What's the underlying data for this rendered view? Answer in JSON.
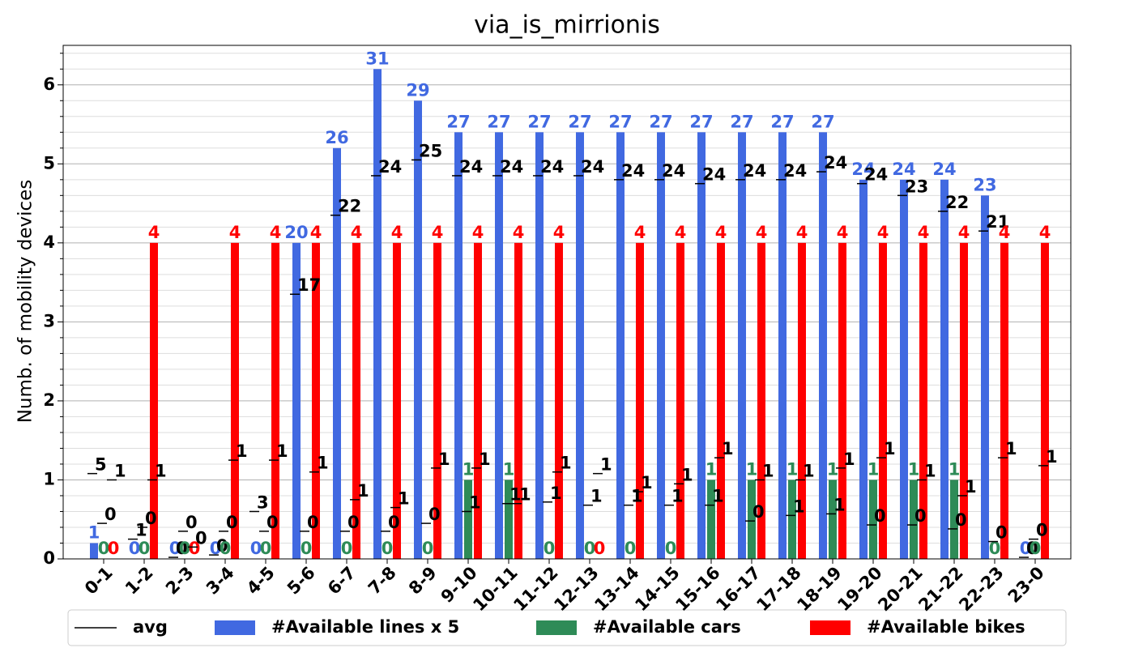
{
  "chart_data": {
    "type": "bar",
    "title": "via_is_mirrionis",
    "ylabel": "Numb. of mobility devices",
    "categories": [
      "0-1",
      "1-2",
      "2-3",
      "3-4",
      "4-5",
      "5-6",
      "6-7",
      "7-8",
      "8-9",
      "9-10",
      "10-11",
      "11-12",
      "12-13",
      "13-14",
      "14-15",
      "15-16",
      "16-17",
      "17-18",
      "18-19",
      "19-20",
      "20-21",
      "21-22",
      "22-23",
      "23-0"
    ],
    "ylim": [
      0,
      6.5
    ],
    "yticks": [
      0,
      1,
      2,
      3,
      4,
      5,
      6
    ],
    "minor_yticks": [
      0.2,
      0.4,
      0.6,
      0.8,
      1.2,
      1.4,
      1.6,
      1.8,
      2.2,
      2.4,
      2.6,
      2.8,
      3.2,
      3.4,
      3.6,
      3.8,
      4.2,
      4.4,
      4.6,
      4.8,
      5.2,
      5.4,
      5.6,
      5.8,
      6.2,
      6.4
    ],
    "grid": true,
    "legend": "bottom",
    "avg_name": "avg",
    "avg_color": "#000000",
    "series": [
      {
        "name": "#Available lines x 5",
        "color": "#4169e1",
        "values": [
          0.2,
          0,
          0,
          0,
          0,
          4,
          5.2,
          6.2,
          5.8,
          5.4,
          5.4,
          5.4,
          5.4,
          5.4,
          5.4,
          5.4,
          5.4,
          5.4,
          5.4,
          4.8,
          4.8,
          4.8,
          4.6,
          0
        ],
        "value_labels": [
          "1",
          "0",
          "0",
          "0",
          "0",
          "20",
          "26",
          "31",
          "29",
          "27",
          "27",
          "27",
          "27",
          "27",
          "27",
          "27",
          "27",
          "27",
          "27",
          "24",
          "24",
          "24",
          "23",
          "0"
        ],
        "avg": [
          1.08,
          0.25,
          0.02,
          0.05,
          0.6,
          3.35,
          4.35,
          4.85,
          5.05,
          4.85,
          4.85,
          4.85,
          4.85,
          4.8,
          4.8,
          4.75,
          4.8,
          4.8,
          4.9,
          4.75,
          4.6,
          4.4,
          4.15,
          0.02
        ],
        "avg_labels": [
          "5",
          "1",
          "0",
          "0",
          "3",
          "17",
          "22",
          "24",
          "25",
          "24",
          "24",
          "24",
          "24",
          "24",
          "24",
          "24",
          "24",
          "24",
          "24",
          "24",
          "23",
          "22",
          "21",
          "0"
        ]
      },
      {
        "name": "#Available cars",
        "color": "#2e8b57",
        "values": [
          0,
          0,
          0,
          0,
          0,
          0,
          0,
          0,
          0,
          1,
          1,
          0,
          0,
          0,
          0,
          1,
          1,
          1,
          1,
          1,
          1,
          1,
          0,
          0
        ],
        "value_labels": [
          "0",
          "0",
          "0",
          "0",
          "0",
          "0",
          "0",
          "0",
          "0",
          "1",
          "1",
          "0",
          "0",
          "0",
          "0",
          "1",
          "1",
          "1",
          "1",
          "1",
          "1",
          "1",
          "0",
          "0"
        ],
        "avg": [
          0.45,
          0.4,
          0.35,
          0.35,
          0.35,
          0.35,
          0.35,
          0.35,
          0.45,
          0.6,
          0.7,
          0.72,
          0.68,
          0.68,
          0.68,
          0.68,
          0.48,
          0.55,
          0.57,
          0.43,
          0.43,
          0.38,
          0.22,
          0.25
        ],
        "avg_labels": [
          "0",
          "0",
          "0",
          "0",
          "0",
          "0",
          "0",
          "0",
          "0",
          "1",
          "1",
          "1",
          "1",
          "1",
          "1",
          "1",
          "0",
          "1",
          "1",
          "0",
          "0",
          "0",
          "0",
          "0"
        ]
      },
      {
        "name": "#Available bikes",
        "color": "#ff0000",
        "values": [
          0,
          4,
          0,
          4,
          4,
          4,
          4,
          4,
          4,
          4,
          4,
          4,
          0,
          4,
          4,
          4,
          4,
          4,
          4,
          4,
          4,
          4,
          4,
          4
        ],
        "value_labels": [
          "0",
          "4",
          "0",
          "4",
          "4",
          "4",
          "4",
          "4",
          "4",
          "4",
          "4",
          "4",
          "0",
          "4",
          "4",
          "4",
          "4",
          "4",
          "4",
          "4",
          "4",
          "4",
          "4",
          "4"
        ],
        "avg": [
          1.0,
          1.0,
          0.15,
          1.25,
          1.25,
          1.1,
          0.75,
          0.65,
          1.15,
          1.15,
          0.7,
          1.1,
          1.08,
          0.85,
          0.95,
          1.28,
          1.0,
          1.0,
          1.15,
          1.28,
          1.0,
          0.8,
          1.28,
          1.18
        ],
        "avg_labels": [
          "1",
          "1",
          "0",
          "1",
          "1",
          "1",
          "1",
          "1",
          "1",
          "1",
          "1",
          "1",
          "1",
          "1",
          "1",
          "1",
          "1",
          "1",
          "1",
          "1",
          "1",
          "1",
          "1",
          "1"
        ]
      }
    ]
  }
}
